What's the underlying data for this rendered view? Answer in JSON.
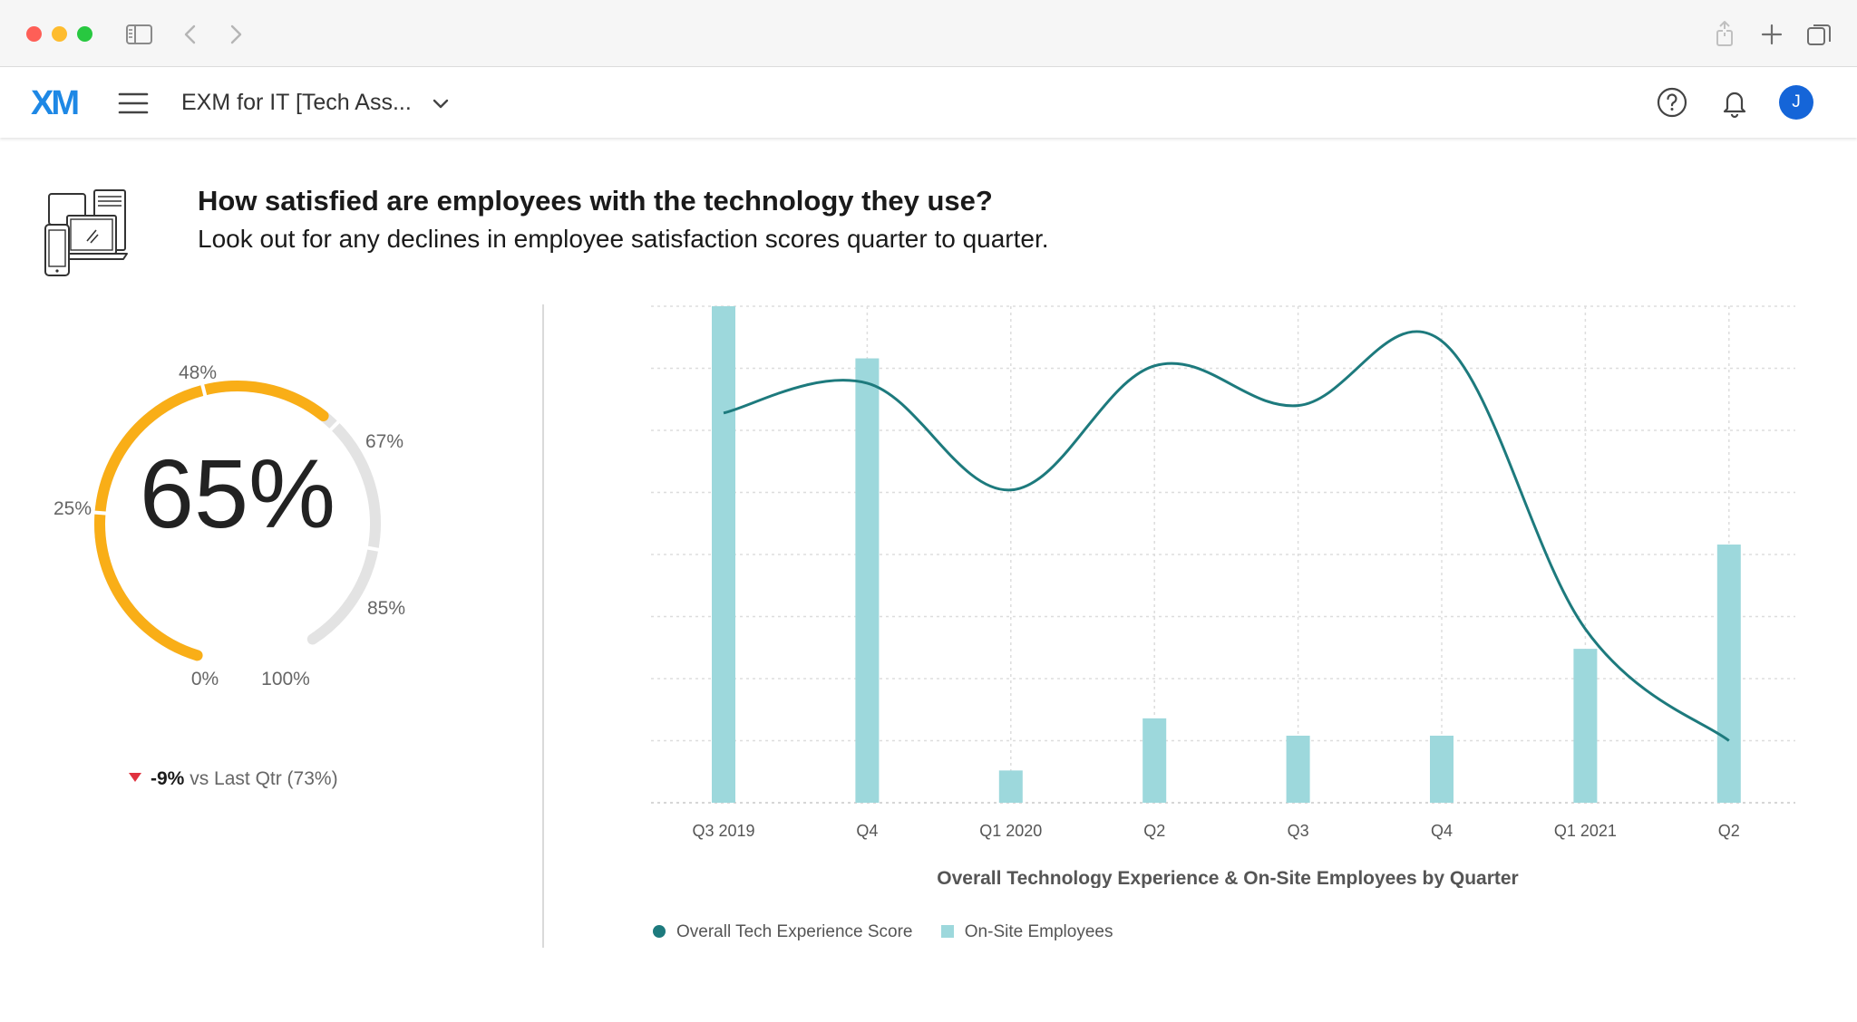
{
  "app": {
    "logo": "XM",
    "project_title": "EXM for IT [Tech Ass...",
    "avatar_initial": "J",
    "brand_color": "#1e88e5",
    "avatar_color": "#1565d8"
  },
  "question": {
    "title": "How satisfied are employees with the technology they use?",
    "subtitle": "Look out for any declines in employee satisfaction scores quarter to quarter."
  },
  "gauge": {
    "value_label": "65%",
    "value": 65,
    "ticks": [
      "0%",
      "25%",
      "48%",
      "67%",
      "85%",
      "100%"
    ],
    "fill_color": "#f9ae17",
    "track_color": "#e3e3e3",
    "change": "-9%",
    "change_text": "vs Last Qtr (73%)"
  },
  "chart_data": {
    "type": "bar+line",
    "categories": [
      "Q3 2019",
      "Q4",
      "Q1 2020",
      "Q2",
      "Q3",
      "Q4",
      "Q1 2021",
      "Q2"
    ],
    "series": [
      {
        "name": "On-Site Employees",
        "type": "bar",
        "color": "#9dd8dc",
        "values": [
          100,
          89.5,
          6.5,
          17,
          13.5,
          13.5,
          31,
          52
        ]
      },
      {
        "name": "Overall Tech Experience Score",
        "type": "line",
        "color": "#1d7a7d",
        "values": [
          78.5,
          84.5,
          63,
          88,
          80,
          93,
          35,
          12.5
        ]
      }
    ],
    "title": "Overall Technology Experience & On-Site Employees by Quarter",
    "ylim": [
      0,
      100
    ],
    "grid": true,
    "legend": "bottom-left"
  },
  "legend": {
    "line_label": "Overall Tech Experience Score",
    "bar_label": "On-Site Employees"
  }
}
